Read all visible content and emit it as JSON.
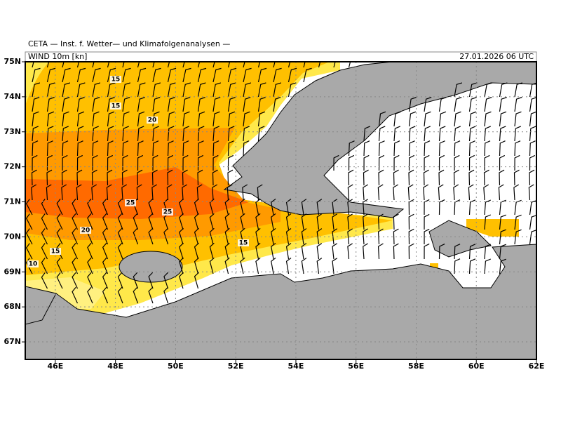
{
  "header": {
    "title": "CETA — Inst. f. Wetter— und Klimafolgenanalysen —",
    "field": "WIND 10m [kn]",
    "valid": "27.01.2026 06 UTC"
  },
  "map": {
    "xlim": [
      45,
      62
    ],
    "ylim": [
      66.5,
      75
    ],
    "xticks": [
      {
        "value": 46,
        "label": "46E"
      },
      {
        "value": 48,
        "label": "48E"
      },
      {
        "value": 50,
        "label": "50E"
      },
      {
        "value": 52,
        "label": "52E"
      },
      {
        "value": 54,
        "label": "54E"
      },
      {
        "value": 56,
        "label": "56E"
      },
      {
        "value": 58,
        "label": "58E"
      },
      {
        "value": 60,
        "label": "60E"
      },
      {
        "value": 62,
        "label": "62E"
      }
    ],
    "yticks": [
      {
        "value": 67,
        "label": "67N"
      },
      {
        "value": 68,
        "label": "68N"
      },
      {
        "value": 69,
        "label": "69N"
      },
      {
        "value": 70,
        "label": "70N"
      },
      {
        "value": 71,
        "label": "71N"
      },
      {
        "value": 72,
        "label": "72N"
      },
      {
        "value": 73,
        "label": "73N"
      },
      {
        "value": 74,
        "label": "74N"
      },
      {
        "value": 75,
        "label": "75N"
      }
    ],
    "contour_labels": [
      15,
      15,
      20,
      25,
      25,
      20,
      15,
      15,
      10
    ]
  }
}
